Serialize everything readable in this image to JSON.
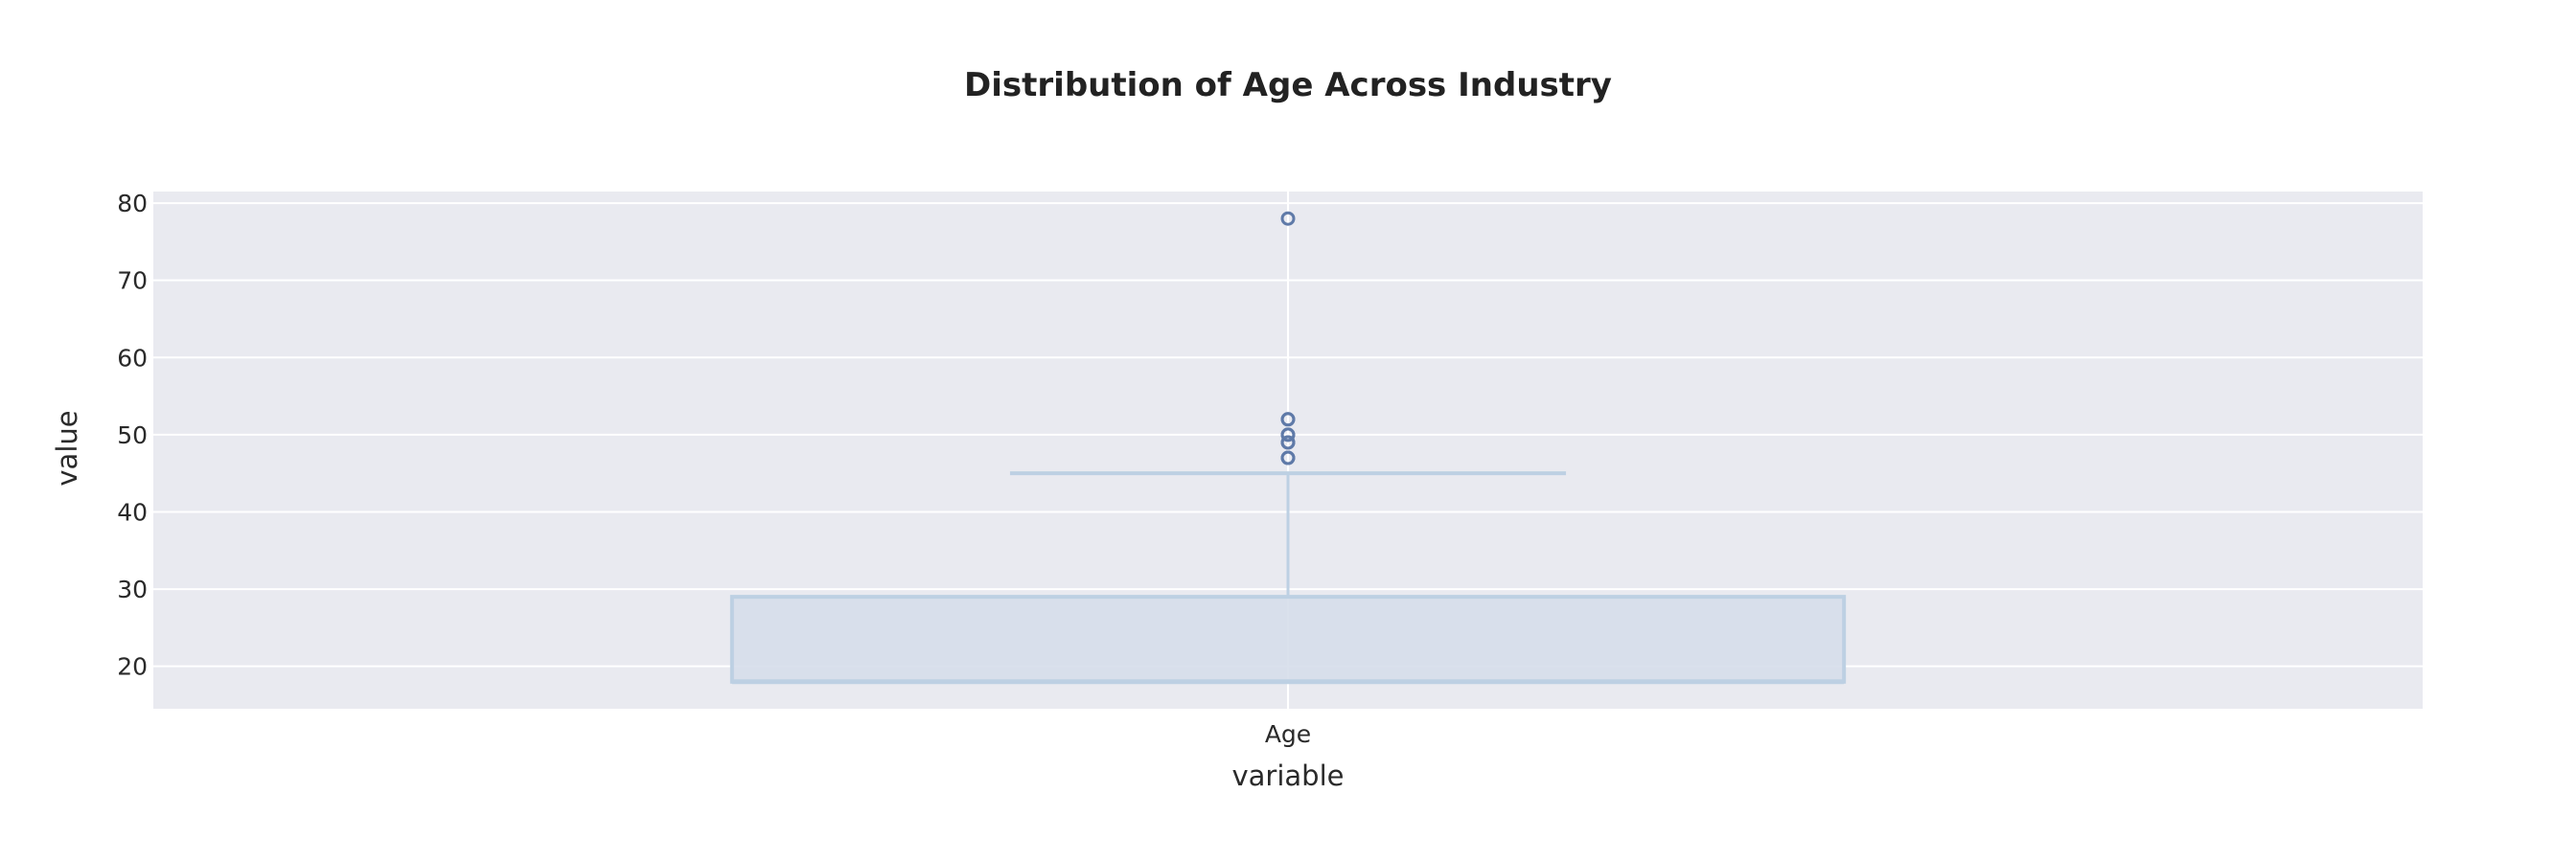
{
  "chart_data": {
    "type": "box",
    "title": "Distribution of Age Across Industry",
    "xlabel": "variable",
    "ylabel": "value",
    "categories": [
      "Age"
    ],
    "ylim": [
      14.5,
      81.5
    ],
    "yticks": [
      20,
      30,
      40,
      50,
      60,
      70,
      80
    ],
    "grid": true,
    "legend": "none",
    "box": {
      "category": "Age",
      "q1": 18,
      "median": 18,
      "q3": 29,
      "lower_whisker": 18,
      "upper_whisker": 45,
      "outliers": [
        47,
        47,
        49,
        49,
        50,
        50,
        52,
        52,
        78
      ]
    },
    "colors": {
      "plot_background": "#e9eaf0",
      "grid": "#ffffff",
      "box_fill": "#d6deea",
      "box_line": "#bdd0e3",
      "outlier": "#5f7aa8"
    }
  }
}
